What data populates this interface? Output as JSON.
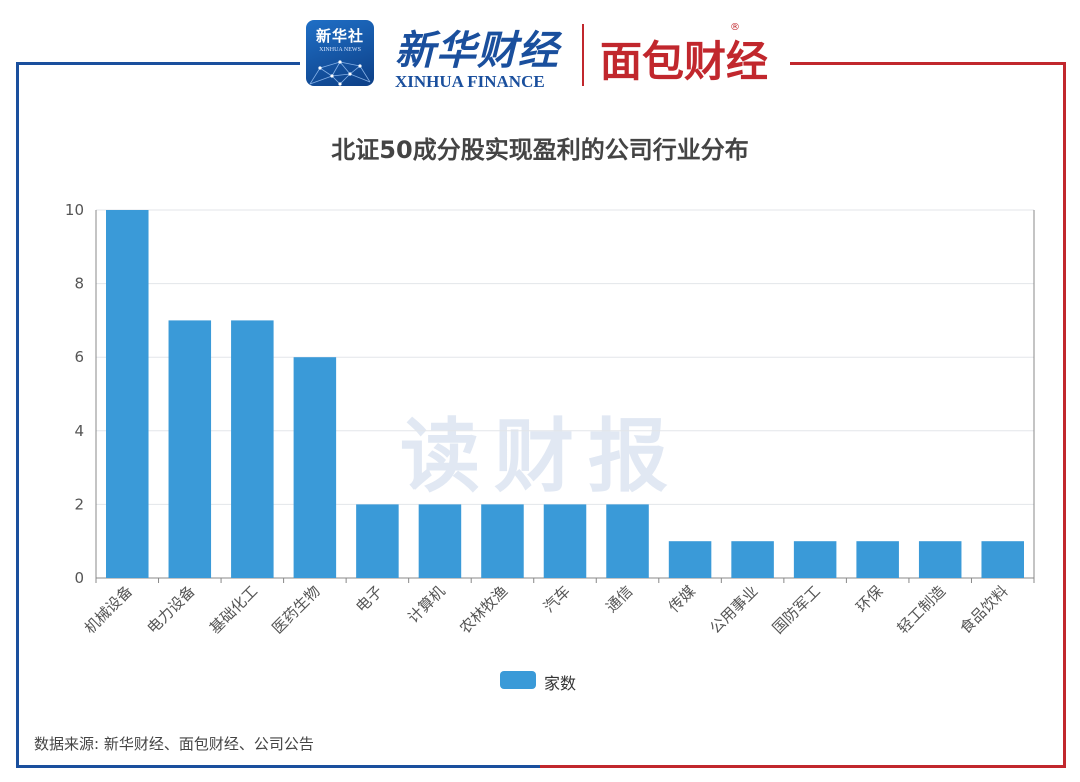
{
  "branding": {
    "xinhua_badge": "新华社",
    "xinhua_badge_sub": "XINHUA NEWS",
    "xinhua_finance_cn": "新华财经",
    "xinhua_finance_en": "XINHUA FINANCE",
    "mianbao_logo": "面包财经",
    "mianbao_reg": "®",
    "colors": {
      "blue": "#1a4f9d",
      "red": "#c1272d"
    }
  },
  "watermark": "读财报",
  "source": "数据来源: 新华财经、面包财经、公司公告",
  "chart_data": {
    "type": "bar",
    "title": "北证50成分股实现盈利的公司行业分布",
    "xlabel": "",
    "ylabel": "",
    "categories": [
      "机械设备",
      "电力设备",
      "基础化工",
      "医药生物",
      "电子",
      "计算机",
      "农林牧渔",
      "汽车",
      "通信",
      "传媒",
      "公用事业",
      "国防军工",
      "环保",
      "轻工制造",
      "食品饮料"
    ],
    "series": [
      {
        "name": "家数",
        "values": [
          10,
          7,
          7,
          6,
          2,
          2,
          2,
          2,
          2,
          1,
          1,
          1,
          1,
          1,
          1
        ],
        "color": "#3a9ad8"
      }
    ],
    "ylim": [
      0,
      10
    ],
    "yticks": [
      0,
      2,
      4,
      6,
      8,
      10
    ],
    "grid": true,
    "legend": "bottom-center"
  }
}
